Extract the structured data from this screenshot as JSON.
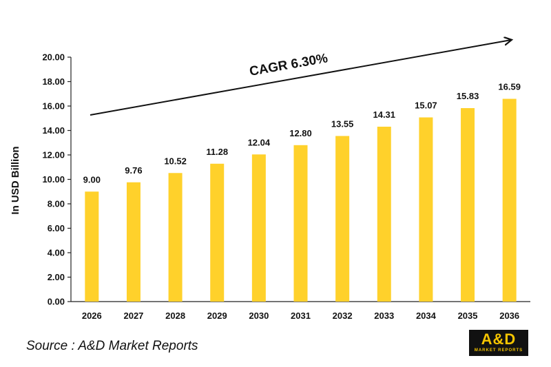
{
  "chart_data": {
    "type": "bar",
    "categories": [
      "2026",
      "2027",
      "2028",
      "2029",
      "2030",
      "2031",
      "2032",
      "2033",
      "2034",
      "2035",
      "2036"
    ],
    "values": [
      9.0,
      9.76,
      10.52,
      11.28,
      12.04,
      12.8,
      13.55,
      14.31,
      15.07,
      15.83,
      16.59
    ],
    "data_labels": [
      "9.00",
      "9.76",
      "10.52",
      "11.28",
      "12.04",
      "12.80",
      "13.55",
      "14.31",
      "15.07",
      "15.83",
      "16.59"
    ],
    "ylabel": "In USD Billion",
    "xlabel": "",
    "ylim": [
      0,
      20
    ],
    "yticks": [
      "0.00",
      "2.00",
      "4.00",
      "6.00",
      "8.00",
      "10.00",
      "12.00",
      "14.00",
      "16.00",
      "18.00",
      "20.00"
    ],
    "annotation": "CAGR 6.30%",
    "grid": false,
    "bar_color": "#FFD12B"
  },
  "source": "Source : A&D Market Reports",
  "logo": {
    "main": "A&D",
    "sub": "MARKET REPORTS"
  }
}
